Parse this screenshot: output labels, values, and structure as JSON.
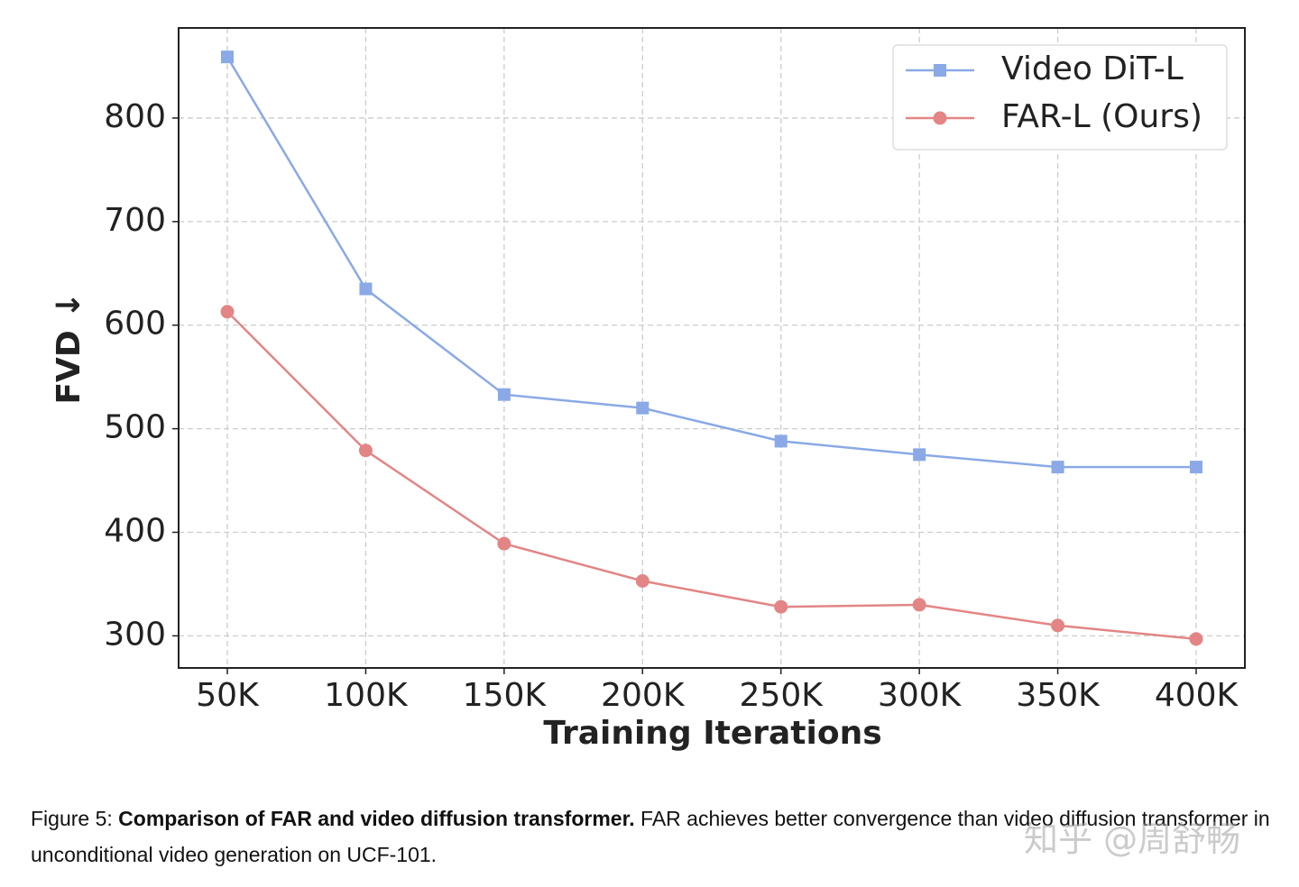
{
  "chart_data": {
    "type": "line",
    "x": [
      50000,
      100000,
      150000,
      200000,
      250000,
      300000,
      350000,
      400000
    ],
    "series": [
      {
        "name": "Video DiT-L",
        "color": "#8aa9e6",
        "marker": "square",
        "values": [
          859,
          635,
          533,
          520,
          488,
          475,
          463,
          463
        ]
      },
      {
        "name": "FAR-L (Ours)",
        "color": "#e38585",
        "marker": "circle",
        "values": [
          613,
          479,
          389,
          353,
          328,
          330,
          310,
          297
        ]
      }
    ],
    "xlabel": "Training Iterations",
    "ylabel": "FVD ↓",
    "xlim": [
      32400,
      417600
    ],
    "ylim": [
      269,
      887
    ],
    "xticks": [
      {
        "value": 50000,
        "label": "50K"
      },
      {
        "value": 100000,
        "label": "100K"
      },
      {
        "value": 150000,
        "label": "150K"
      },
      {
        "value": 200000,
        "label": "200K"
      },
      {
        "value": 250000,
        "label": "250K"
      },
      {
        "value": 300000,
        "label": "300K"
      },
      {
        "value": 350000,
        "label": "350K"
      },
      {
        "value": 400000,
        "label": "400K"
      }
    ],
    "yticks": [
      300,
      400,
      500,
      600,
      700,
      800
    ],
    "grid": true,
    "legend": "upper right"
  },
  "caption": {
    "label": "Figure 5:",
    "title": "Comparison of FAR and video diffusion transformer.",
    "text": "FAR achieves better convergence than video diffusion transformer in unconditional video generation on UCF-101."
  },
  "watermark": "知乎 @周舒畅"
}
